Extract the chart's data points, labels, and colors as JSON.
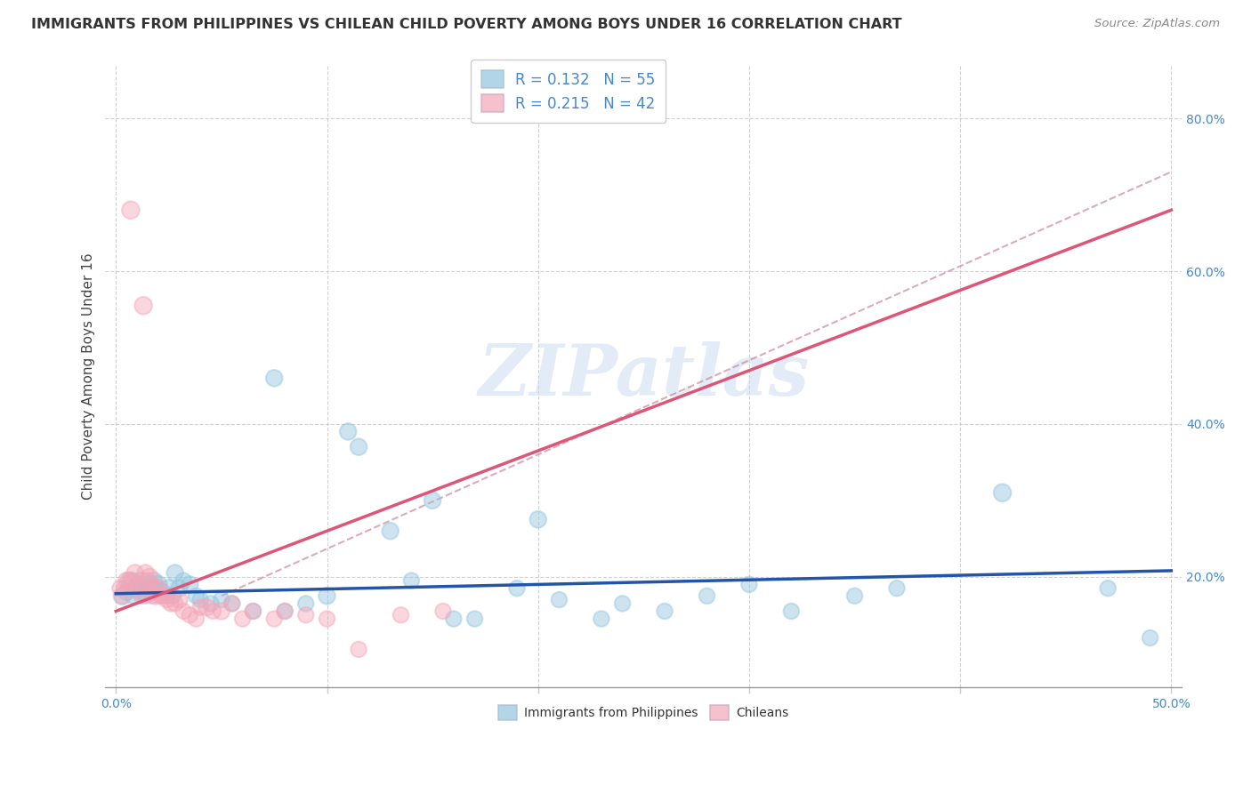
{
  "title": "IMMIGRANTS FROM PHILIPPINES VS CHILEAN CHILD POVERTY AMONG BOYS UNDER 16 CORRELATION CHART",
  "source": "Source: ZipAtlas.com",
  "ylabel": "Child Poverty Among Boys Under 16",
  "xlim": [
    -0.005,
    0.505
  ],
  "ylim": [
    0.055,
    0.87
  ],
  "xticks": [
    0.0,
    0.1,
    0.2,
    0.3,
    0.4,
    0.5
  ],
  "yticks": [
    0.2,
    0.4,
    0.6,
    0.8
  ],
  "ytick_labels": [
    "20.0%",
    "40.0%",
    "60.0%",
    "80.0%"
  ],
  "xtick_labels": [
    "0.0%",
    "",
    "",
    "",
    "",
    "50.0%"
  ],
  "legend_r1": "R = 0.132   N = 55",
  "legend_r2": "R = 0.215   N = 42",
  "blue_color": "#92c5de",
  "pink_color": "#f4a6b8",
  "blue_line_color": "#2255aa",
  "pink_line_color": "#dd5577",
  "gray_line_color": "#cc8899",
  "watermark": "ZIPatlas",
  "blue_scatter_x": [
    0.003,
    0.005,
    0.007,
    0.008,
    0.009,
    0.01,
    0.011,
    0.012,
    0.013,
    0.014,
    0.015,
    0.016,
    0.017,
    0.018,
    0.019,
    0.02,
    0.022,
    0.024,
    0.025,
    0.027,
    0.028,
    0.03,
    0.032,
    0.035,
    0.038,
    0.04,
    0.045,
    0.05,
    0.055,
    0.065,
    0.075,
    0.08,
    0.09,
    0.1,
    0.11,
    0.115,
    0.13,
    0.14,
    0.15,
    0.16,
    0.17,
    0.19,
    0.2,
    0.21,
    0.23,
    0.24,
    0.26,
    0.28,
    0.3,
    0.32,
    0.35,
    0.37,
    0.42,
    0.47,
    0.49
  ],
  "blue_scatter_y": [
    0.175,
    0.18,
    0.195,
    0.175,
    0.185,
    0.19,
    0.18,
    0.195,
    0.185,
    0.175,
    0.185,
    0.19,
    0.18,
    0.195,
    0.185,
    0.19,
    0.18,
    0.175,
    0.185,
    0.175,
    0.205,
    0.185,
    0.195,
    0.19,
    0.175,
    0.17,
    0.165,
    0.17,
    0.165,
    0.155,
    0.46,
    0.155,
    0.165,
    0.175,
    0.39,
    0.37,
    0.26,
    0.195,
    0.3,
    0.145,
    0.145,
    0.185,
    0.275,
    0.17,
    0.145,
    0.165,
    0.155,
    0.175,
    0.19,
    0.155,
    0.175,
    0.185,
    0.31,
    0.185,
    0.12
  ],
  "blue_scatter_size": [
    200,
    180,
    180,
    160,
    160,
    160,
    160,
    180,
    160,
    160,
    180,
    200,
    160,
    180,
    160,
    200,
    180,
    160,
    180,
    160,
    180,
    180,
    160,
    180,
    160,
    160,
    160,
    160,
    160,
    160,
    180,
    160,
    160,
    180,
    180,
    180,
    180,
    160,
    180,
    160,
    160,
    160,
    180,
    160,
    160,
    160,
    160,
    160,
    160,
    160,
    160,
    160,
    200,
    160,
    160
  ],
  "pink_scatter_x": [
    0.002,
    0.003,
    0.004,
    0.005,
    0.006,
    0.007,
    0.008,
    0.009,
    0.01,
    0.011,
    0.012,
    0.013,
    0.014,
    0.015,
    0.016,
    0.017,
    0.018,
    0.019,
    0.02,
    0.021,
    0.022,
    0.024,
    0.026,
    0.028,
    0.03,
    0.032,
    0.035,
    0.038,
    0.04,
    0.043,
    0.046,
    0.05,
    0.055,
    0.06,
    0.065,
    0.075,
    0.08,
    0.09,
    0.1,
    0.115,
    0.135,
    0.155
  ],
  "pink_scatter_y": [
    0.185,
    0.175,
    0.185,
    0.195,
    0.195,
    0.68,
    0.195,
    0.205,
    0.185,
    0.185,
    0.175,
    0.555,
    0.205,
    0.195,
    0.2,
    0.175,
    0.185,
    0.175,
    0.185,
    0.175,
    0.175,
    0.17,
    0.165,
    0.165,
    0.17,
    0.155,
    0.15,
    0.145,
    0.16,
    0.16,
    0.155,
    0.155,
    0.165,
    0.145,
    0.155,
    0.145,
    0.155,
    0.15,
    0.145,
    0.105,
    0.15,
    0.155
  ],
  "pink_scatter_size": [
    160,
    160,
    160,
    180,
    180,
    200,
    160,
    180,
    160,
    180,
    160,
    200,
    180,
    160,
    180,
    160,
    180,
    180,
    200,
    160,
    160,
    160,
    160,
    160,
    180,
    160,
    160,
    160,
    160,
    180,
    160,
    180,
    160,
    160,
    160,
    160,
    160,
    160,
    160,
    160,
    160,
    160
  ],
  "blue_trend_x0": 0.0,
  "blue_trend_x1": 0.5,
  "blue_trend_y0": 0.178,
  "blue_trend_y1": 0.208,
  "pink_trend_x0": 0.0,
  "pink_trend_x1": 0.5,
  "pink_trend_y0": 0.155,
  "pink_trend_y1": 0.68,
  "gray_trend_x0": 0.05,
  "gray_trend_x1": 0.5,
  "gray_trend_y0": 0.175,
  "gray_trend_y1": 0.73,
  "title_fontsize": 11.5,
  "source_fontsize": 9.5,
  "tick_fontsize": 10,
  "ylabel_fontsize": 11
}
